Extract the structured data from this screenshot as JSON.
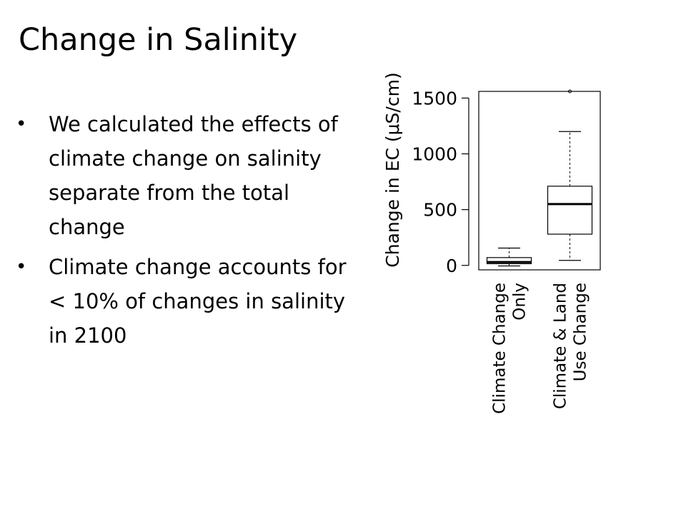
{
  "slide": {
    "title": "Change in Salinity",
    "bullets": [
      "We calculated the effects of climate change on salinity separate from the total change",
      "Climate change accounts for < 10% of changes in salinity in 2100"
    ]
  },
  "chart_data": {
    "type": "box",
    "title": "",
    "ylabel": "Change in EC (μS/cm)",
    "xlabel": "",
    "ylim": [
      -40,
      1560
    ],
    "yticks": [
      0,
      500,
      1000,
      1500
    ],
    "grid": false,
    "categories": [
      "Climate Change Only",
      "Climate & Land Use Change"
    ],
    "category_label_lines": [
      [
        "Climate Change",
        "Only"
      ],
      [
        "Climate & Land",
        "Use Change"
      ]
    ],
    "boxes": [
      {
        "category": "Climate Change Only",
        "whisker_low": -5,
        "q1": 15,
        "median": 30,
        "q3": 70,
        "whisker_high": 155,
        "outliers": []
      },
      {
        "category": "Climate & Land Use Change",
        "whisker_low": 45,
        "q1": 280,
        "median": 550,
        "q3": 710,
        "whisker_high": 1200,
        "outliers": [
          1560
        ]
      }
    ]
  }
}
